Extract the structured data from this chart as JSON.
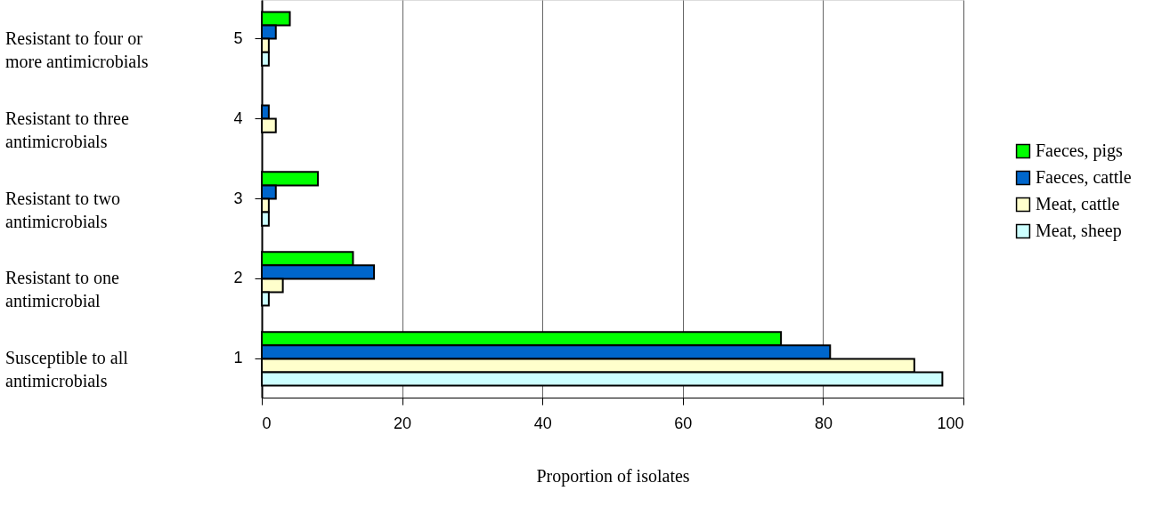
{
  "chart_data": {
    "type": "bar",
    "orientation": "horizontal",
    "xlabel": "Proportion of isolates",
    "categories": [
      "5",
      "4",
      "3",
      "2",
      "1"
    ],
    "series": [
      {
        "name": "Faeces, pigs",
        "color": "#00ff00",
        "values": [
          4,
          null,
          8,
          13,
          74
        ]
      },
      {
        "name": "Faeces, cattle",
        "color": "#0066cc",
        "values": [
          2,
          1,
          2,
          16,
          81
        ]
      },
      {
        "name": "Meat, cattle",
        "color": "#ffffcc",
        "values": [
          1,
          2,
          1,
          3,
          93
        ]
      },
      {
        "name": "Meat, sheep",
        "color": "#ccffff",
        "values": [
          1,
          null,
          1,
          1,
          97
        ]
      }
    ],
    "xlim": [
      0,
      100
    ],
    "xticks": [
      0,
      20,
      40,
      60,
      80,
      100
    ],
    "grid": "x",
    "legend": "right",
    "annotations": [
      "Resistant to four or\nmore antimicrobials",
      "Resistant to three\nantimicrobials",
      "Resistant to two\nantimicrobials",
      "Resistant to one\nantimicrobial",
      "Susceptible to all\nantimicrobials"
    ]
  }
}
